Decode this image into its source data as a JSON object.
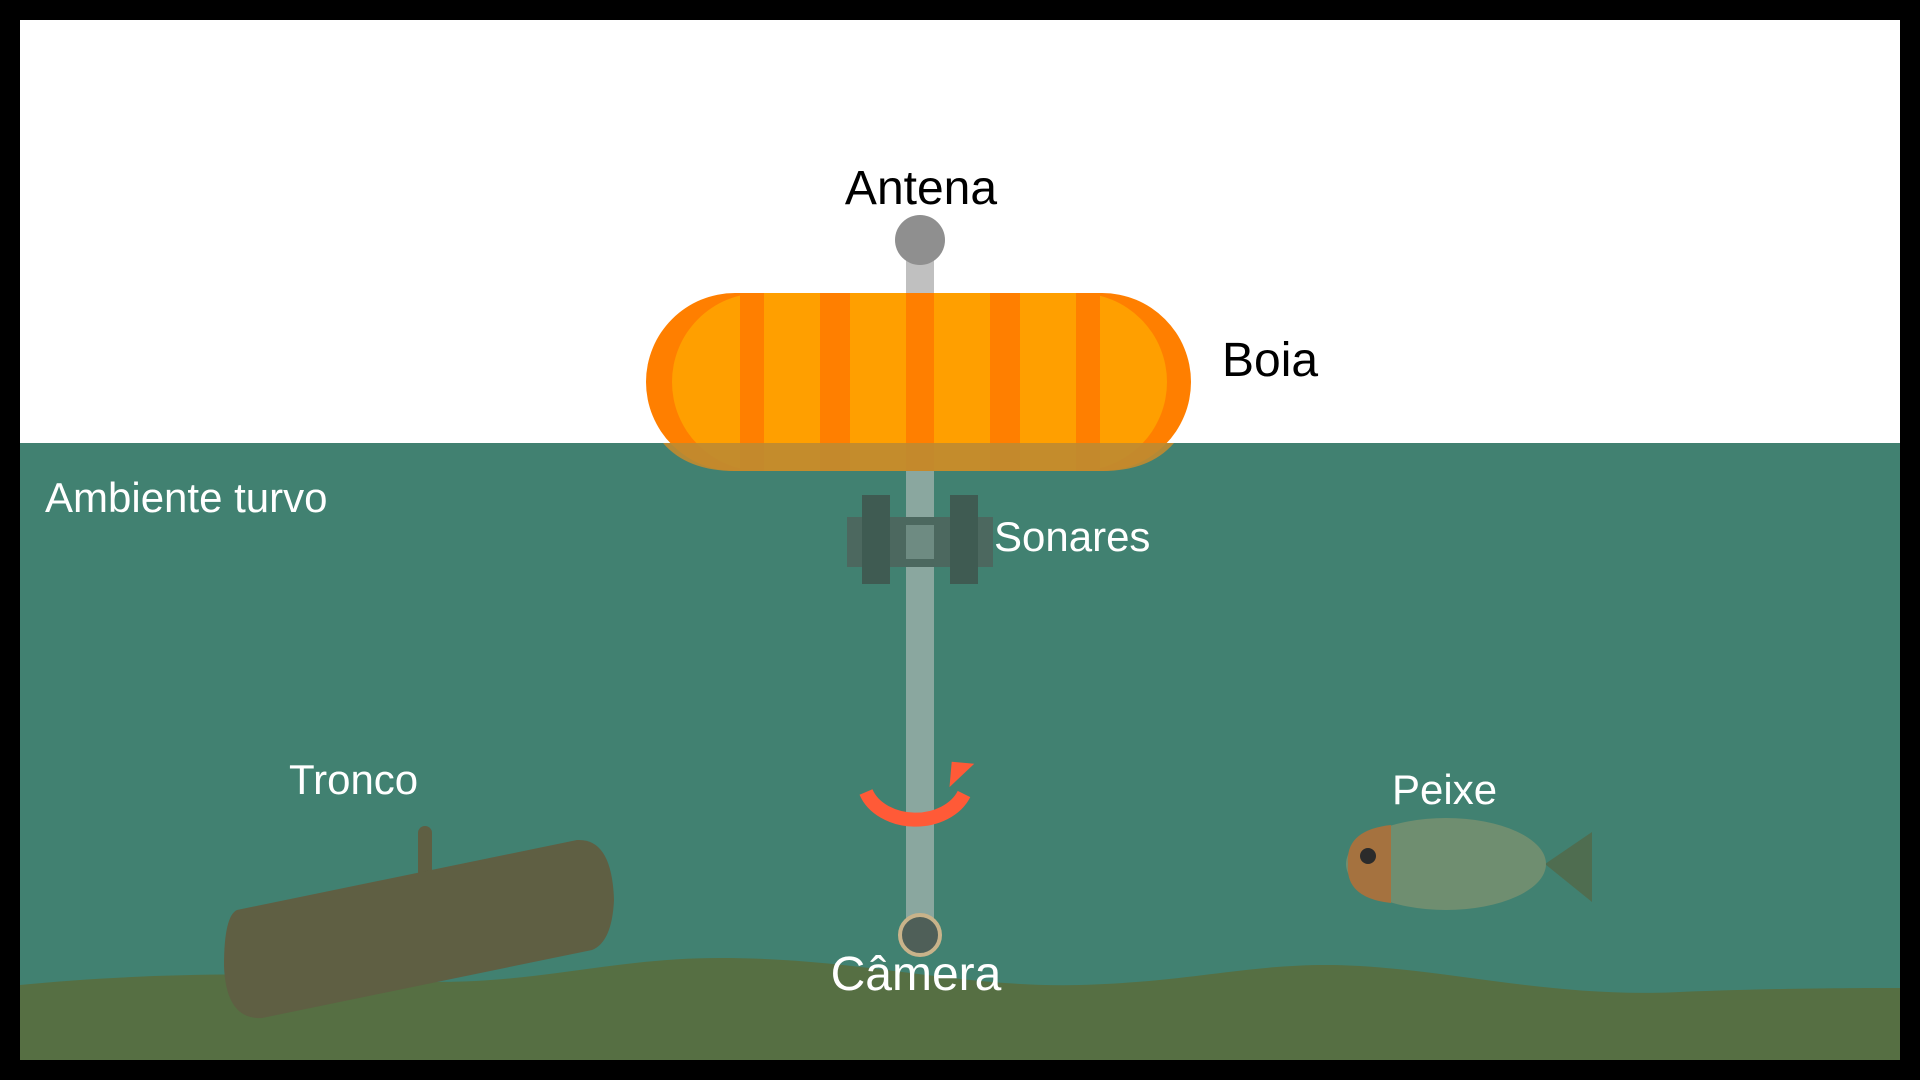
{
  "labels": {
    "antenna": "Antena",
    "buoy": "Boia",
    "environment": "Ambiente turvo",
    "sonars": "Sonares",
    "log": "Tronco",
    "fish": "Peixe",
    "camera": "Câmera"
  },
  "colors": {
    "frame": "#000000",
    "sky": "#ffffff",
    "water": "#418171",
    "seabed": "#566f43",
    "buoy_body": "#ff9f00",
    "buoy_stripe": "#ff7f00",
    "buoy_underwater": "#bf8a30",
    "pole_above": "#c0c0c0",
    "pole_below": "#8aa79f",
    "antenna_ball": "#8f8f8f",
    "sonar": "#4c685f",
    "rotation_arrow": "#ff5a37",
    "camera": "#4f5f58",
    "camera_ring": "#c9b38a",
    "log": "#5f5f43",
    "fish_body": "#6f8e70",
    "fish_head": "#a5723f",
    "fish_tail": "#4f6d50",
    "label_dark": "#000000",
    "label_light": "#ffffff"
  },
  "icons": {
    "rotation": "curved-rotation-arrow"
  }
}
